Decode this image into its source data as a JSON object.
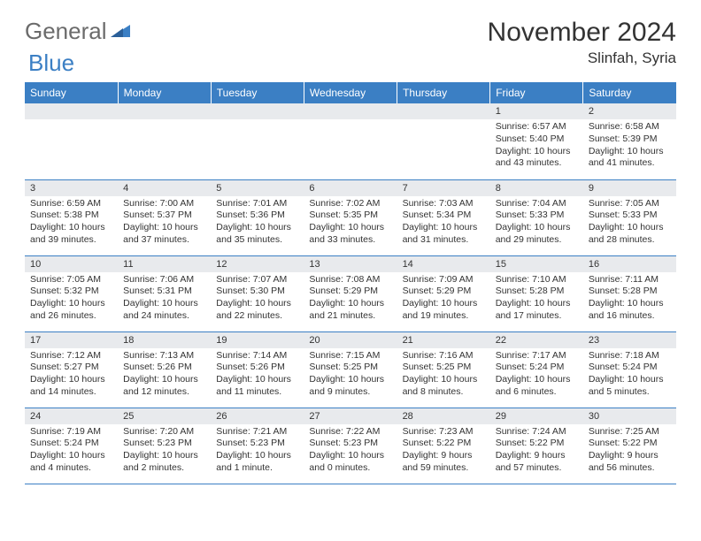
{
  "logo": {
    "text1": "General",
    "text2": "Blue"
  },
  "title": "November 2024",
  "location": "Slinfah, Syria",
  "colors": {
    "header_bg": "#3b7fc4",
    "header_text": "#ffffff",
    "daynum_bg": "#e8eaed",
    "border": "#3b7fc4",
    "logo_gray": "#6b6b6b",
    "logo_blue": "#3b7fc4"
  },
  "weekdays": [
    "Sunday",
    "Monday",
    "Tuesday",
    "Wednesday",
    "Thursday",
    "Friday",
    "Saturday"
  ],
  "weeks": [
    [
      null,
      null,
      null,
      null,
      null,
      {
        "n": "1",
        "sr": "Sunrise: 6:57 AM",
        "ss": "Sunset: 5:40 PM",
        "dl": "Daylight: 10 hours and 43 minutes."
      },
      {
        "n": "2",
        "sr": "Sunrise: 6:58 AM",
        "ss": "Sunset: 5:39 PM",
        "dl": "Daylight: 10 hours and 41 minutes."
      }
    ],
    [
      {
        "n": "3",
        "sr": "Sunrise: 6:59 AM",
        "ss": "Sunset: 5:38 PM",
        "dl": "Daylight: 10 hours and 39 minutes."
      },
      {
        "n": "4",
        "sr": "Sunrise: 7:00 AM",
        "ss": "Sunset: 5:37 PM",
        "dl": "Daylight: 10 hours and 37 minutes."
      },
      {
        "n": "5",
        "sr": "Sunrise: 7:01 AM",
        "ss": "Sunset: 5:36 PM",
        "dl": "Daylight: 10 hours and 35 minutes."
      },
      {
        "n": "6",
        "sr": "Sunrise: 7:02 AM",
        "ss": "Sunset: 5:35 PM",
        "dl": "Daylight: 10 hours and 33 minutes."
      },
      {
        "n": "7",
        "sr": "Sunrise: 7:03 AM",
        "ss": "Sunset: 5:34 PM",
        "dl": "Daylight: 10 hours and 31 minutes."
      },
      {
        "n": "8",
        "sr": "Sunrise: 7:04 AM",
        "ss": "Sunset: 5:33 PM",
        "dl": "Daylight: 10 hours and 29 minutes."
      },
      {
        "n": "9",
        "sr": "Sunrise: 7:05 AM",
        "ss": "Sunset: 5:33 PM",
        "dl": "Daylight: 10 hours and 28 minutes."
      }
    ],
    [
      {
        "n": "10",
        "sr": "Sunrise: 7:05 AM",
        "ss": "Sunset: 5:32 PM",
        "dl": "Daylight: 10 hours and 26 minutes."
      },
      {
        "n": "11",
        "sr": "Sunrise: 7:06 AM",
        "ss": "Sunset: 5:31 PM",
        "dl": "Daylight: 10 hours and 24 minutes."
      },
      {
        "n": "12",
        "sr": "Sunrise: 7:07 AM",
        "ss": "Sunset: 5:30 PM",
        "dl": "Daylight: 10 hours and 22 minutes."
      },
      {
        "n": "13",
        "sr": "Sunrise: 7:08 AM",
        "ss": "Sunset: 5:29 PM",
        "dl": "Daylight: 10 hours and 21 minutes."
      },
      {
        "n": "14",
        "sr": "Sunrise: 7:09 AM",
        "ss": "Sunset: 5:29 PM",
        "dl": "Daylight: 10 hours and 19 minutes."
      },
      {
        "n": "15",
        "sr": "Sunrise: 7:10 AM",
        "ss": "Sunset: 5:28 PM",
        "dl": "Daylight: 10 hours and 17 minutes."
      },
      {
        "n": "16",
        "sr": "Sunrise: 7:11 AM",
        "ss": "Sunset: 5:28 PM",
        "dl": "Daylight: 10 hours and 16 minutes."
      }
    ],
    [
      {
        "n": "17",
        "sr": "Sunrise: 7:12 AM",
        "ss": "Sunset: 5:27 PM",
        "dl": "Daylight: 10 hours and 14 minutes."
      },
      {
        "n": "18",
        "sr": "Sunrise: 7:13 AM",
        "ss": "Sunset: 5:26 PM",
        "dl": "Daylight: 10 hours and 12 minutes."
      },
      {
        "n": "19",
        "sr": "Sunrise: 7:14 AM",
        "ss": "Sunset: 5:26 PM",
        "dl": "Daylight: 10 hours and 11 minutes."
      },
      {
        "n": "20",
        "sr": "Sunrise: 7:15 AM",
        "ss": "Sunset: 5:25 PM",
        "dl": "Daylight: 10 hours and 9 minutes."
      },
      {
        "n": "21",
        "sr": "Sunrise: 7:16 AM",
        "ss": "Sunset: 5:25 PM",
        "dl": "Daylight: 10 hours and 8 minutes."
      },
      {
        "n": "22",
        "sr": "Sunrise: 7:17 AM",
        "ss": "Sunset: 5:24 PM",
        "dl": "Daylight: 10 hours and 6 minutes."
      },
      {
        "n": "23",
        "sr": "Sunrise: 7:18 AM",
        "ss": "Sunset: 5:24 PM",
        "dl": "Daylight: 10 hours and 5 minutes."
      }
    ],
    [
      {
        "n": "24",
        "sr": "Sunrise: 7:19 AM",
        "ss": "Sunset: 5:24 PM",
        "dl": "Daylight: 10 hours and 4 minutes."
      },
      {
        "n": "25",
        "sr": "Sunrise: 7:20 AM",
        "ss": "Sunset: 5:23 PM",
        "dl": "Daylight: 10 hours and 2 minutes."
      },
      {
        "n": "26",
        "sr": "Sunrise: 7:21 AM",
        "ss": "Sunset: 5:23 PM",
        "dl": "Daylight: 10 hours and 1 minute."
      },
      {
        "n": "27",
        "sr": "Sunrise: 7:22 AM",
        "ss": "Sunset: 5:23 PM",
        "dl": "Daylight: 10 hours and 0 minutes."
      },
      {
        "n": "28",
        "sr": "Sunrise: 7:23 AM",
        "ss": "Sunset: 5:22 PM",
        "dl": "Daylight: 9 hours and 59 minutes."
      },
      {
        "n": "29",
        "sr": "Sunrise: 7:24 AM",
        "ss": "Sunset: 5:22 PM",
        "dl": "Daylight: 9 hours and 57 minutes."
      },
      {
        "n": "30",
        "sr": "Sunrise: 7:25 AM",
        "ss": "Sunset: 5:22 PM",
        "dl": "Daylight: 9 hours and 56 minutes."
      }
    ]
  ]
}
